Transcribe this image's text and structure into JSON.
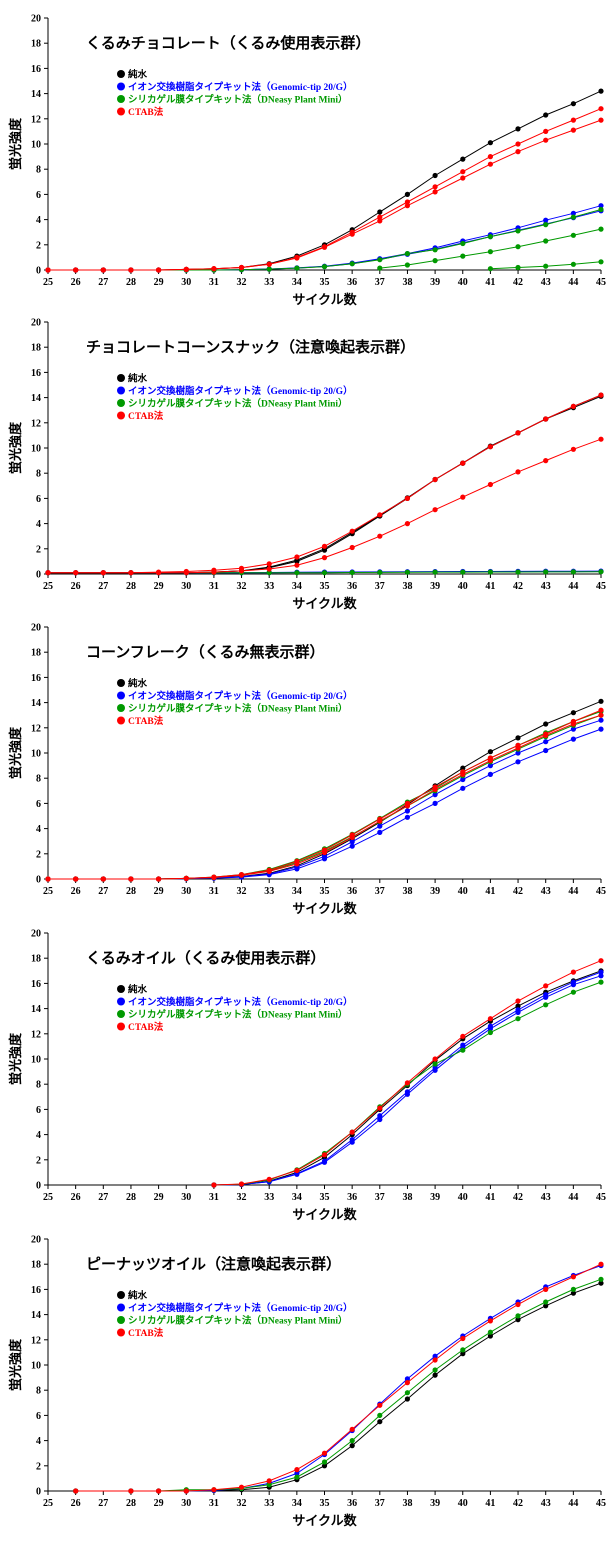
{
  "chart_data": [
    {
      "type": "line",
      "title": "くるみチョコレート（くるみ使用表示群）",
      "xlabel": "サイクル数",
      "ylabel": "蛍光強度",
      "x": [
        25,
        26,
        27,
        28,
        29,
        30,
        31,
        32,
        33,
        34,
        35,
        36,
        37,
        38,
        39,
        40,
        41,
        42,
        43,
        44,
        45
      ],
      "xlim": [
        25,
        45
      ],
      "ylim": [
        0,
        20
      ],
      "yticks": [
        0,
        2,
        4,
        6,
        8,
        10,
        12,
        14,
        16,
        18,
        20
      ],
      "legend": [
        "純水",
        "イオン交換樹脂タイプキット法（Genomic-tip 20/G）",
        "シリカゲル膜タイプキット法（DNeasy Plant Mini）",
        "CTAB法"
      ],
      "series": [
        {
          "name": "純水",
          "color": "#000000",
          "lines": [
            [
              0,
              0,
              0,
              0,
              0,
              0.05,
              0.1,
              0.2,
              0.5,
              1.1,
              2.0,
              3.2,
              4.6,
              6.0,
              7.5,
              8.8,
              10.1,
              11.2,
              12.3,
              13.2,
              14.2
            ]
          ]
        },
        {
          "name": "イオン交換樹脂タイプキット法（Genomic-tip 20/G）",
          "color": "#0000ff",
          "lines": [
            [
              0,
              0,
              0,
              0,
              0,
              0,
              0,
              0.02,
              0.08,
              0.17,
              0.3,
              0.55,
              0.9,
              1.3,
              1.75,
              2.3,
              2.8,
              3.35,
              3.95,
              4.5,
              5.1
            ],
            [
              0,
              0,
              0,
              0,
              0,
              0,
              0,
              0.02,
              0.07,
              0.15,
              0.28,
              0.5,
              0.85,
              1.25,
              1.65,
              2.15,
              2.65,
              3.15,
              3.65,
              4.15,
              4.7
            ]
          ]
        },
        {
          "name": "シリカゲル膜タイプキット法（DNeasy Plant Mini）",
          "color": "#009900",
          "lines": [
            [
              0,
              0,
              0,
              0,
              0,
              0,
              0,
              0.02,
              0.07,
              0.15,
              0.27,
              0.5,
              0.82,
              1.3,
              1.6,
              2.1,
              2.65,
              3.1,
              3.6,
              4.2,
              4.8
            ],
            [
              null,
              null,
              null,
              null,
              null,
              null,
              null,
              null,
              null,
              null,
              null,
              null,
              0.15,
              0.4,
              0.75,
              1.1,
              1.45,
              1.85,
              2.3,
              2.75,
              3.25
            ],
            [
              null,
              null,
              null,
              null,
              null,
              null,
              null,
              null,
              null,
              null,
              null,
              null,
              null,
              null,
              null,
              null,
              0.1,
              0.2,
              0.3,
              0.45,
              0.65
            ]
          ]
        },
        {
          "name": "CTAB法",
          "color": "#ff0000",
          "lines": [
            [
              0,
              0,
              0,
              0,
              0,
              0.05,
              0.1,
              0.2,
              0.45,
              1.0,
              1.85,
              3.0,
              4.2,
              5.4,
              6.6,
              7.8,
              9.0,
              10.0,
              11.0,
              11.9,
              12.8
            ],
            [
              0,
              0,
              0,
              0,
              0,
              0.05,
              0.1,
              0.2,
              0.45,
              0.95,
              1.8,
              2.85,
              3.9,
              5.1,
              6.2,
              7.3,
              8.4,
              9.4,
              10.3,
              11.1,
              11.9
            ]
          ]
        }
      ]
    },
    {
      "type": "line",
      "title": "チョコレートコーンスナック（注意喚起表示群）",
      "xlabel": "サイクル数",
      "ylabel": "蛍光強度",
      "x": [
        25,
        26,
        27,
        28,
        29,
        30,
        31,
        32,
        33,
        34,
        35,
        36,
        37,
        38,
        39,
        40,
        41,
        42,
        43,
        44,
        45
      ],
      "xlim": [
        25,
        45
      ],
      "ylim": [
        0,
        20
      ],
      "yticks": [
        0,
        2,
        4,
        6,
        8,
        10,
        12,
        14,
        16,
        18,
        20
      ],
      "legend": [
        "純水",
        "イオン交換樹脂タイプキット法（Genomic-tip 20/G）",
        "シリカゲル膜タイプキット法（DNeasy Plant Mini）",
        "CTAB法"
      ],
      "series": [
        {
          "name": "純水",
          "color": "#000000",
          "lines": [
            [
              0.1,
              0.1,
              0.1,
              0.1,
              0.1,
              0.1,
              0.15,
              0.25,
              0.5,
              1.0,
              1.9,
              3.2,
              4.6,
              6.0,
              7.5,
              8.8,
              10.1,
              11.2,
              12.3,
              13.2,
              14.1
            ],
            [
              0.1,
              0.1,
              0.1,
              0.1,
              0.1,
              0.1,
              0.15,
              0.25,
              0.55,
              1.1,
              2.0,
              3.3,
              4.65,
              6.05,
              7.5,
              8.8,
              10.15,
              11.2,
              12.3,
              13.3,
              14.2
            ]
          ]
        },
        {
          "name": "イオン交換樹脂タイプキット法（Genomic-tip 20/G）",
          "color": "#0000ff",
          "lines": [
            [
              0.1,
              0.1,
              0.1,
              0.1,
              0.1,
              0.1,
              0.1,
              0.1,
              0.12,
              0.14,
              0.15,
              0.16,
              0.17,
              0.18,
              0.19,
              0.2,
              0.2,
              0.21,
              0.22,
              0.22,
              0.23
            ],
            [
              0.1,
              0.1,
              0.1,
              0.1,
              0.1,
              0.1,
              0.1,
              0.1,
              0.1,
              0.12,
              0.13,
              0.14,
              0.15,
              0.16,
              0.17,
              0.17,
              0.18,
              0.18,
              0.19,
              0.19,
              0.2
            ]
          ]
        },
        {
          "name": "シリカゲル膜タイプキット法（DNeasy Plant Mini）",
          "color": "#009900",
          "lines": [
            [
              0.1,
              0.1,
              0.1,
              0.1,
              0.1,
              0.1,
              0.1,
              0.1,
              0.1,
              0.1,
              0.1,
              0.12,
              0.13,
              0.14,
              0.15,
              0.15,
              0.16,
              0.16,
              0.17,
              0.17,
              0.18
            ]
          ]
        },
        {
          "name": "CTAB法",
          "color": "#ff0000",
          "lines": [
            [
              0.1,
              0.1,
              0.1,
              0.1,
              0.15,
              0.2,
              0.3,
              0.45,
              0.8,
              1.35,
              2.2,
              3.4,
              4.7,
              6.0,
              7.5,
              8.8,
              10.1,
              11.2,
              12.3,
              13.3,
              14.2
            ],
            [
              0.1,
              0.1,
              0.1,
              0.1,
              0.1,
              0.1,
              0.15,
              0.25,
              0.4,
              0.7,
              1.3,
              2.1,
              3.0,
              4.0,
              5.1,
              6.1,
              7.1,
              8.1,
              9.0,
              9.9,
              10.7
            ]
          ]
        }
      ]
    },
    {
      "type": "line",
      "title": "コーンフレーク（くるみ無表示群）",
      "xlabel": "サイクル数",
      "ylabel": "蛍光強度",
      "x": [
        25,
        26,
        27,
        28,
        29,
        30,
        31,
        32,
        33,
        34,
        35,
        36,
        37,
        38,
        39,
        40,
        41,
        42,
        43,
        44,
        45
      ],
      "xlim": [
        25,
        45
      ],
      "ylim": [
        0,
        20
      ],
      "yticks": [
        0,
        2,
        4,
        6,
        8,
        10,
        12,
        14,
        16,
        18,
        20
      ],
      "legend": [
        "純水",
        "イオン交換樹脂タイプキット法（Genomic-tip 20/G）",
        "シリカゲル膜タイプキット法（DNeasy Plant Mini）",
        "CTAB法"
      ],
      "series": [
        {
          "name": "純水",
          "color": "#000000",
          "lines": [
            [
              0,
              0,
              0,
              0,
              0,
              0.05,
              0.1,
              0.2,
              0.45,
              1.05,
              2.0,
              3.2,
              4.5,
              5.9,
              7.4,
              8.8,
              10.1,
              11.2,
              12.3,
              13.2,
              14.1
            ]
          ]
        },
        {
          "name": "イオン交換樹脂タイプキット法（Genomic-tip 20/G）",
          "color": "#0000ff",
          "lines": [
            [
              0,
              0,
              0,
              0,
              0,
              0.03,
              0.07,
              0.15,
              0.35,
              0.8,
              1.6,
              2.6,
              3.7,
              4.9,
              6.0,
              7.2,
              8.3,
              9.3,
              10.2,
              11.1,
              11.9
            ],
            [
              0,
              0,
              0,
              0,
              0,
              0.04,
              0.08,
              0.18,
              0.4,
              0.95,
              1.8,
              2.95,
              4.2,
              5.4,
              6.7,
              7.9,
              9.0,
              10.0,
              10.9,
              11.9,
              12.6
            ]
          ]
        },
        {
          "name": "シリカゲル膜タイプキット法（DNeasy Plant Mini）",
          "color": "#009900",
          "lines": [
            [
              0,
              0,
              0,
              0,
              0,
              0.05,
              0.15,
              0.35,
              0.75,
              1.45,
              2.4,
              3.55,
              4.8,
              6.1,
              7.2,
              8.5,
              9.6,
              10.6,
              11.6,
              12.5,
              13.3
            ],
            [
              0,
              0,
              0,
              0,
              0,
              0.05,
              0.12,
              0.3,
              0.65,
              1.3,
              2.2,
              3.35,
              4.55,
              5.8,
              7.0,
              8.2,
              9.3,
              10.3,
              11.3,
              12.2,
              13.0
            ]
          ]
        },
        {
          "name": "CTAB法",
          "color": "#ff0000",
          "lines": [
            [
              0,
              0,
              0,
              0,
              0,
              0.05,
              0.12,
              0.3,
              0.6,
              1.2,
              2.1,
              3.3,
              4.6,
              5.8,
              7.1,
              8.3,
              9.4,
              10.4,
              11.4,
              12.3,
              13.0
            ],
            [
              0,
              0,
              0,
              0,
              0,
              0.05,
              0.15,
              0.35,
              0.7,
              1.4,
              2.3,
              3.5,
              4.75,
              6.0,
              7.3,
              8.5,
              9.6,
              10.6,
              11.5,
              12.5,
              13.4
            ]
          ]
        }
      ]
    },
    {
      "type": "line",
      "title": "くるみオイル（くるみ使用表示群）",
      "xlabel": "サイクル数",
      "ylabel": "蛍光強度",
      "x": [
        25,
        26,
        27,
        28,
        29,
        30,
        31,
        32,
        33,
        34,
        35,
        36,
        37,
        38,
        39,
        40,
        41,
        42,
        43,
        44,
        45
      ],
      "xlim": [
        25,
        45
      ],
      "ylim": [
        0,
        20
      ],
      "yticks": [
        0,
        2,
        4,
        6,
        8,
        10,
        12,
        14,
        16,
        18,
        20
      ],
      "legend": [
        "純水",
        "イオン交換樹脂タイプキット法（Genomic-tip 20/G）",
        "シリカゲル膜タイプキット法（DNeasy Plant Mini）",
        "CTAB法"
      ],
      "series": [
        {
          "name": "純水",
          "color": "#000000",
          "lines": [
            [
              null,
              null,
              null,
              null,
              null,
              null,
              0,
              0.05,
              0.3,
              1.0,
              2.2,
              4.0,
              6.0,
              7.9,
              9.9,
              11.6,
              13.0,
              14.2,
              15.3,
              16.2,
              17.0
            ]
          ]
        },
        {
          "name": "イオン交換樹脂タイプキット法（Genomic-tip 20/G）",
          "color": "#0000ff",
          "lines": [
            [
              null,
              null,
              null,
              null,
              null,
              null,
              0,
              0.04,
              0.25,
              0.85,
              1.8,
              3.4,
              5.2,
              7.2,
              9.1,
              10.9,
              12.4,
              13.7,
              14.9,
              15.9,
              16.6
            ],
            [
              null,
              null,
              null,
              null,
              null,
              null,
              0,
              0.04,
              0.27,
              0.9,
              1.9,
              3.6,
              5.5,
              7.4,
              9.3,
              11.1,
              12.6,
              13.9,
              15.1,
              16.1,
              16.9
            ]
          ]
        },
        {
          "name": "シリカゲル膜タイプキット法（DNeasy Plant Mini）",
          "color": "#009900",
          "lines": [
            [
              null,
              null,
              null,
              null,
              null,
              null,
              0,
              0.06,
              0.4,
              1.2,
              2.5,
              4.2,
              6.2,
              8.0,
              9.6,
              10.7,
              12.1,
              13.2,
              14.3,
              15.3,
              16.1
            ]
          ]
        },
        {
          "name": "CTAB法",
          "color": "#ff0000",
          "lines": [
            [
              null,
              null,
              null,
              null,
              null,
              null,
              0,
              0.08,
              0.45,
              1.15,
              2.4,
              4.2,
              6.1,
              8.1,
              10.0,
              11.8,
              13.2,
              14.6,
              15.8,
              16.9,
              17.8
            ]
          ]
        }
      ]
    },
    {
      "type": "line",
      "title": "ピーナッツオイル（注意喚起表示群）",
      "xlabel": "サイクル数",
      "ylabel": "蛍光強度",
      "x": [
        25,
        26,
        27,
        28,
        29,
        30,
        31,
        32,
        33,
        34,
        35,
        36,
        37,
        38,
        39,
        40,
        41,
        42,
        43,
        44,
        45
      ],
      "xlim": [
        25,
        45
      ],
      "ylim": [
        0,
        20
      ],
      "yticks": [
        0,
        2,
        4,
        6,
        8,
        10,
        12,
        14,
        16,
        18,
        20
      ],
      "legend": [
        "純水",
        "イオン交換樹脂タイプキット法（Genomic-tip 20/G）",
        "シリカゲル膜タイプキット法（DNeasy Plant Mini）",
        "CTAB法"
      ],
      "series": [
        {
          "name": "純水",
          "color": "#000000",
          "lines": [
            [
              null,
              0,
              null,
              0,
              0,
              0,
              0.05,
              0.1,
              0.3,
              0.9,
              2.0,
              3.6,
              5.5,
              7.3,
              9.2,
              10.9,
              12.3,
              13.6,
              14.7,
              15.7,
              16.5
            ]
          ]
        },
        {
          "name": "イオン交換樹脂タイプキット法（Genomic-tip 20/G）",
          "color": "#0000ff",
          "lines": [
            [
              null,
              0,
              null,
              0,
              0,
              0,
              0.05,
              0.2,
              0.6,
              1.4,
              2.9,
              4.8,
              6.9,
              8.9,
              10.7,
              12.3,
              13.7,
              15.0,
              16.2,
              17.1,
              17.9
            ]
          ]
        },
        {
          "name": "シリカゲル膜タイプキット法（DNeasy Plant Mini）",
          "color": "#009900",
          "lines": [
            [
              null,
              0,
              null,
              0,
              0,
              0.1,
              0.1,
              0.2,
              0.5,
              1.1,
              2.3,
              4.0,
              6.0,
              7.8,
              9.6,
              11.2,
              12.6,
              13.9,
              15.0,
              16.0,
              16.8
            ]
          ]
        },
        {
          "name": "CTAB法",
          "color": "#ff0000",
          "lines": [
            [
              null,
              0,
              null,
              0,
              0,
              0,
              0.1,
              0.3,
              0.8,
              1.7,
              3.0,
              4.9,
              6.8,
              8.6,
              10.4,
              12.1,
              13.5,
              14.8,
              16.0,
              17.0,
              18.0
            ]
          ]
        }
      ]
    }
  ]
}
